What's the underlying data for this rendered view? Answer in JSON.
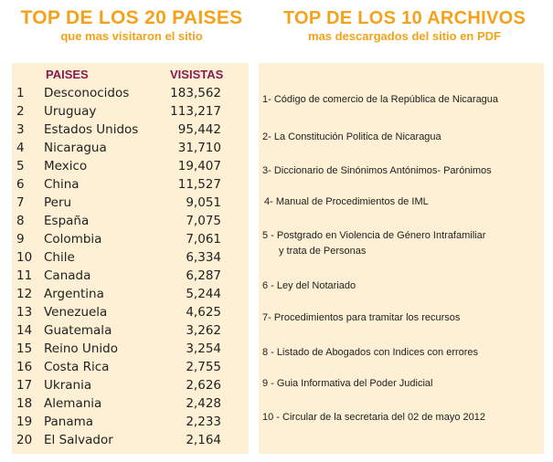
{
  "left": {
    "title": "TOP DE LOS 20 PAISES",
    "subtitle": "que mas visitaron el sitio",
    "col_country": "PAISES",
    "col_visits": "VISISTAS",
    "rows": [
      {
        "n": "1",
        "country": "Desconocidos",
        "visits": "183,562"
      },
      {
        "n": "2",
        "country": "Uruguay",
        "visits": "113,217"
      },
      {
        "n": "3",
        "country": "Estados Unidos",
        "visits": "95,442"
      },
      {
        "n": "4",
        "country": "Nicaragua",
        "visits": "31,710"
      },
      {
        "n": "5",
        "country": "Mexico",
        "visits": "19,407"
      },
      {
        "n": "6",
        "country": "China",
        "visits": "11,527"
      },
      {
        "n": "7",
        "country": "Peru",
        "visits": "9,051"
      },
      {
        "n": "8",
        "country": "España",
        "visits": "7,075"
      },
      {
        "n": "9",
        "country": "Colombia",
        "visits": "7,061"
      },
      {
        "n": "10",
        "country": "Chile",
        "visits": "6,334"
      },
      {
        "n": "11",
        "country": "Canada",
        "visits": "6,287"
      },
      {
        "n": "12",
        "country": "Argentina",
        "visits": "5,244"
      },
      {
        "n": "13",
        "country": "Venezuela",
        "visits": "4,625"
      },
      {
        "n": "14",
        "country": "Guatemala",
        "visits": "3,262"
      },
      {
        "n": "15",
        "country": "Reino Unido",
        "visits": "3,254"
      },
      {
        "n": "16",
        "country": "Costa Rica",
        "visits": "2,755"
      },
      {
        "n": "17",
        "country": "Ukrania",
        "visits": "2,626"
      },
      {
        "n": "18",
        "country": "Alemania",
        "visits": "2,428"
      },
      {
        "n": "19",
        "country": "Panama",
        "visits": "2,233"
      },
      {
        "n": "20",
        "country": "El Salvador",
        "visits": "2,164"
      }
    ]
  },
  "right": {
    "title": "TOP DE LOS 10 ARCHIVOS",
    "subtitle": "mas descargados del sitio en PDF",
    "files": [
      {
        "line1": "1- Código de comercio de la República de Nicaragua"
      },
      {
        "line1": "2- La Constitución Politica  de Nicaragua"
      },
      {
        "line1": "3- Diccionario de Sinónimos Antónimos- Parónimos"
      },
      {
        "line1": "4- Manual de Procedimientos de IML"
      },
      {
        "line1": "5 -  Postgrado en Violencia de Género Intrafamiliar",
        "line2": "y trata de Personas"
      },
      {
        "line1": "6 - Ley del Notariado"
      },
      {
        "line1": "7- Procedimientos para tramitar los recursos"
      },
      {
        "line1": "8 - Listado de Abogados con Indices con errores"
      },
      {
        "line1": "9 - Guia Informativa del Poder Judicial"
      },
      {
        "line1": "10 - Circular de la secretaria del 02 de mayo 2012"
      }
    ]
  }
}
